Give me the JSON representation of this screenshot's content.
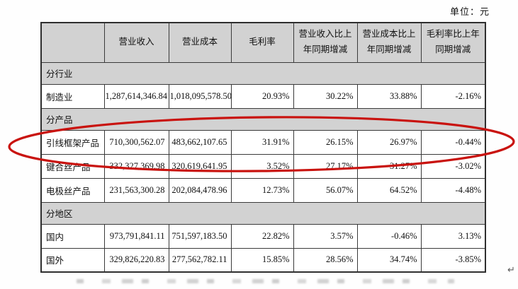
{
  "meta": {
    "unit_label": "单位：元",
    "return_mark": "↵"
  },
  "colors": {
    "header_bg": "#d2d2d2",
    "section_bg": "#d2d2d2",
    "border": "#3a3a3a",
    "annotation_red": "#c9130f"
  },
  "annotation": {
    "shape": "ellipse",
    "color": "#c9130f",
    "target_row": "引线框架产品"
  },
  "table": {
    "columns": [
      "",
      "营业收入",
      "营业成本",
      "毛利率",
      "营业收入比上年同期增减",
      "营业成本比上年同期增减",
      "毛利率比上年同期增减"
    ],
    "rows": [
      {
        "type": "section",
        "label": "分行业"
      },
      {
        "type": "data",
        "label": "制造业",
        "values": [
          "1,287,614,346.84",
          "1,018,095,578.50",
          "20.93%",
          "30.22%",
          "33.88%",
          "-2.16%"
        ]
      },
      {
        "type": "section",
        "label": "分产品"
      },
      {
        "type": "data",
        "label": "引线框架产品",
        "highlighted": true,
        "values": [
          "710,300,562.07",
          "483,662,107.65",
          "31.91%",
          "26.15%",
          "26.97%",
          "-0.44%"
        ]
      },
      {
        "type": "data",
        "label": "键合丝产品",
        "values": [
          "332,327,369.98",
          "320,619,641.95",
          "3.52%",
          "27.17%",
          "31.27%",
          "-3.02%"
        ]
      },
      {
        "type": "data",
        "label": "电极丝产品",
        "values": [
          "231,563,300.28",
          "202,084,478.96",
          "12.73%",
          "56.07%",
          "64.52%",
          "-4.48%"
        ]
      },
      {
        "type": "section",
        "label": "分地区"
      },
      {
        "type": "data",
        "label": "国内",
        "values": [
          "973,791,841.11",
          "751,597,183.50",
          "22.82%",
          "3.57%",
          "-0.46%",
          "3.13%"
        ]
      },
      {
        "type": "data",
        "label": "国外",
        "values": [
          "329,826,220.83",
          "277,562,782.11",
          "15.85%",
          "28.56%",
          "34.74%",
          "-3.85%"
        ]
      }
    ]
  }
}
